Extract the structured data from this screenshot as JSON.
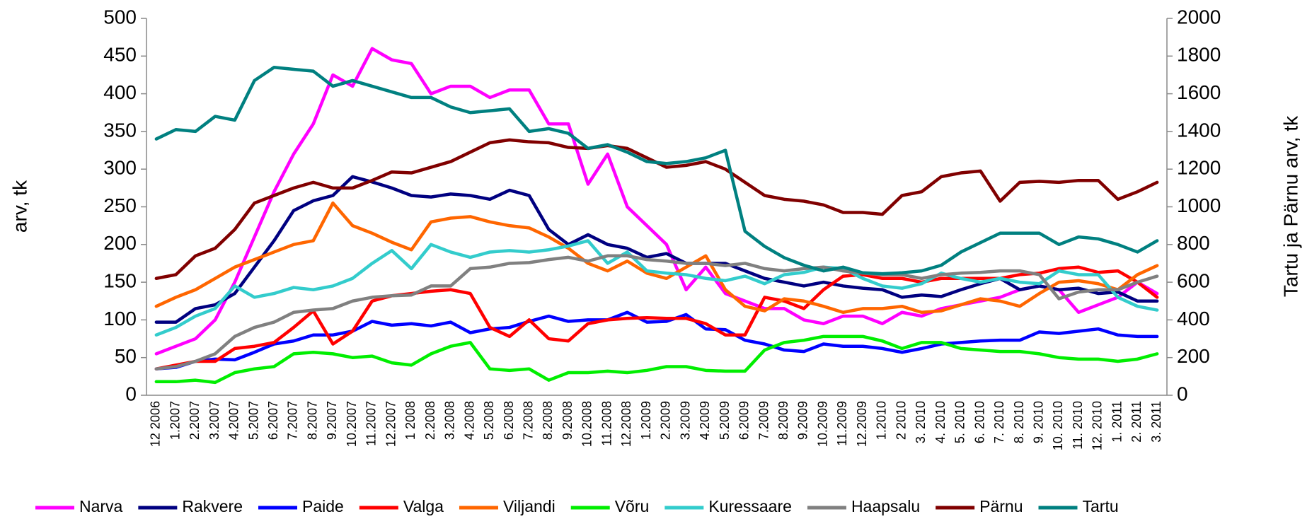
{
  "chart_data": {
    "type": "line",
    "ylabel": "arv, tk",
    "y2label": "Tartu ja Pärnu arv, tk",
    "categories": [
      "12 2006",
      "1.2007",
      "2.2007",
      "3.2007",
      "4.2007",
      "5.2007",
      "6.2007",
      "7.2007",
      "8.2007",
      "9.2007",
      "10.2007",
      "11.2007",
      "12.2007",
      "1 2008",
      "2.2008",
      "3.2008",
      "4.2008",
      "5.2008",
      "6.2008",
      "7.2008",
      "8.2008",
      "9.2008",
      "10.2008",
      "11.2008",
      "12.2008",
      "1.2009",
      "2.2009",
      "3.2009",
      "4.2009",
      "5.2009",
      "6.2009",
      "7.2009",
      "8.2009",
      "9.2009",
      "10.2009",
      "11.2009",
      "12.2009",
      "1.2010",
      "2 2010",
      "3. 2010",
      "4. 2010",
      "5. 2010",
      "6. 2010",
      "7. 2010",
      "8. 2010",
      "9. 2010",
      "10. 2010",
      "11. 2010",
      "12. 2010",
      "1. 2011",
      "2. 2011",
      "3. 2011"
    ],
    "ylim": [
      0,
      500
    ],
    "yticks": [
      0,
      50,
      100,
      150,
      200,
      250,
      300,
      350,
      400,
      450,
      500
    ],
    "y2lim": [
      0,
      2000
    ],
    "y2ticks": [
      0,
      200,
      400,
      600,
      800,
      1000,
      1200,
      1400,
      1600,
      1800,
      2000
    ],
    "legend": "bottom",
    "series": [
      {
        "name": "Narva",
        "color": "#ff00ff",
        "values": [
          55,
          65,
          75,
          100,
          150,
          210,
          270,
          320,
          360,
          425,
          410,
          460,
          445,
          440,
          400,
          410,
          410,
          395,
          405,
          405,
          360,
          360,
          280,
          320,
          250,
          225,
          200,
          140,
          170,
          135,
          125,
          115,
          115,
          100,
          95,
          105,
          105,
          95,
          110,
          105,
          115,
          120,
          125,
          130,
          140,
          145,
          140,
          110,
          120,
          130,
          150,
          135
        ]
      },
      {
        "name": "Rakvere",
        "color": "#000080",
        "values": [
          97,
          97,
          115,
          120,
          135,
          170,
          205,
          245,
          258,
          265,
          290,
          283,
          275,
          265,
          263,
          267,
          265,
          260,
          272,
          265,
          220,
          200,
          213,
          200,
          195,
          183,
          188,
          175,
          175,
          175,
          165,
          155,
          150,
          145,
          150,
          145,
          142,
          140,
          130,
          133,
          131,
          140,
          148,
          155,
          140,
          145,
          140,
          142,
          135,
          137,
          125,
          125
        ]
      },
      {
        "name": "Paide",
        "color": "#0000ff",
        "values": [
          35,
          37,
          45,
          48,
          47,
          57,
          68,
          72,
          80,
          80,
          85,
          98,
          93,
          95,
          92,
          97,
          83,
          88,
          90,
          98,
          105,
          98,
          100,
          100,
          110,
          97,
          98,
          107,
          88,
          87,
          73,
          68,
          60,
          58,
          68,
          65,
          65,
          62,
          57,
          62,
          68,
          70,
          72,
          73,
          73,
          84,
          82,
          85,
          88,
          80,
          78,
          78
        ]
      },
      {
        "name": "Valga",
        "color": "#ff0000",
        "values": [
          35,
          40,
          45,
          45,
          62,
          65,
          70,
          90,
          112,
          68,
          85,
          125,
          132,
          135,
          138,
          140,
          135,
          90,
          78,
          100,
          75,
          72,
          95,
          100,
          102,
          103,
          102,
          102,
          95,
          80,
          80,
          130,
          125,
          115,
          140,
          158,
          160,
          155,
          155,
          150,
          155,
          155,
          155,
          155,
          160,
          162,
          168,
          170,
          163,
          165,
          150,
          130
        ]
      },
      {
        "name": "Viljandi",
        "color": "#ff6600",
        "values": [
          118,
          130,
          140,
          155,
          170,
          180,
          190,
          200,
          205,
          255,
          225,
          215,
          203,
          193,
          230,
          235,
          237,
          230,
          225,
          222,
          210,
          195,
          175,
          165,
          178,
          162,
          155,
          170,
          185,
          140,
          118,
          112,
          128,
          125,
          118,
          110,
          115,
          115,
          118,
          110,
          112,
          120,
          128,
          125,
          118,
          135,
          150,
          152,
          148,
          140,
          160,
          172
        ]
      },
      {
        "name": "Võru",
        "color": "#00ee00",
        "values": [
          18,
          18,
          20,
          17,
          30,
          35,
          38,
          55,
          57,
          55,
          50,
          52,
          43,
          40,
          55,
          65,
          70,
          35,
          33,
          35,
          20,
          30,
          30,
          32,
          30,
          33,
          38,
          38,
          33,
          32,
          32,
          60,
          70,
          73,
          78,
          78,
          78,
          72,
          62,
          70,
          70,
          62,
          60,
          58,
          58,
          55,
          50,
          48,
          48,
          45,
          48,
          55
        ]
      },
      {
        "name": "Kuressaare",
        "color": "#33cccc",
        "values": [
          80,
          90,
          105,
          115,
          145,
          130,
          135,
          143,
          140,
          145,
          155,
          175,
          192,
          168,
          200,
          190,
          183,
          190,
          192,
          190,
          193,
          198,
          205,
          175,
          190,
          165,
          162,
          160,
          155,
          152,
          158,
          148,
          160,
          163,
          170,
          168,
          155,
          145,
          142,
          148,
          162,
          155,
          150,
          155,
          150,
          148,
          165,
          160,
          160,
          130,
          118,
          113
        ]
      },
      {
        "name": "Haapsalu",
        "color": "#808080",
        "values": [
          35,
          38,
          45,
          55,
          78,
          90,
          97,
          110,
          113,
          115,
          125,
          130,
          132,
          133,
          145,
          145,
          168,
          170,
          175,
          176,
          180,
          183,
          178,
          185,
          185,
          180,
          178,
          175,
          175,
          172,
          175,
          168,
          165,
          168,
          170,
          165,
          162,
          160,
          160,
          155,
          160,
          162,
          163,
          165,
          165,
          160,
          128,
          137,
          140,
          140,
          150,
          158
        ]
      },
      {
        "name": "Pärnu",
        "color": "#800000",
        "axis": "y2",
        "values": [
          620,
          640,
          740,
          780,
          880,
          1020,
          1060,
          1100,
          1130,
          1100,
          1100,
          1140,
          1185,
          1180,
          1210,
          1240,
          1290,
          1340,
          1355,
          1345,
          1340,
          1315,
          1310,
          1325,
          1310,
          1260,
          1210,
          1220,
          1240,
          1200,
          1130,
          1060,
          1040,
          1030,
          1010,
          970,
          970,
          960,
          1060,
          1080,
          1160,
          1180,
          1190,
          1030,
          1130,
          1135,
          1130,
          1140,
          1140,
          1040,
          1080,
          1130
        ]
      },
      {
        "name": "Tartu",
        "color": "#008080",
        "axis": "y2",
        "values": [
          1360,
          1410,
          1400,
          1480,
          1460,
          1670,
          1740,
          1730,
          1720,
          1640,
          1670,
          1640,
          1610,
          1580,
          1580,
          1530,
          1500,
          1510,
          1520,
          1400,
          1415,
          1390,
          1310,
          1330,
          1290,
          1240,
          1230,
          1240,
          1260,
          1300,
          870,
          790,
          730,
          690,
          660,
          680,
          650,
          645,
          650,
          660,
          690,
          760,
          810,
          860,
          860,
          860,
          800,
          840,
          830,
          800,
          760,
          820
        ]
      }
    ]
  }
}
